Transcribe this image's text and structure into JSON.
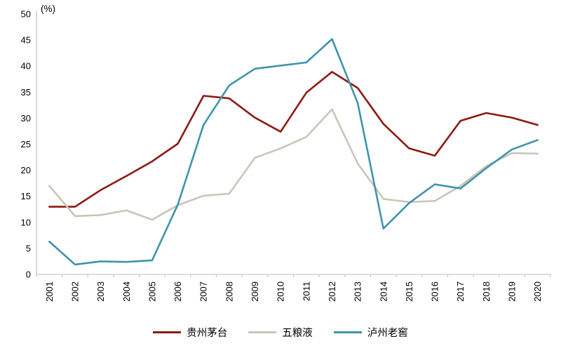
{
  "chart_data": {
    "type": "line",
    "unit_label": "(%)",
    "categories": [
      "2001",
      "2002",
      "2003",
      "2004",
      "2005",
      "2006",
      "2007",
      "2008",
      "2009",
      "2010",
      "2011",
      "2012",
      "2013",
      "2014",
      "2015",
      "2016",
      "2017",
      "2018",
      "2019",
      "2020"
    ],
    "yticks": [
      0,
      5,
      10,
      15,
      20,
      25,
      30,
      35,
      40,
      45,
      50
    ],
    "ylim": [
      0,
      50
    ],
    "grid": false,
    "legend_position": "bottom",
    "axis_color": "#c7c7c7",
    "text_color": "#000000",
    "series": [
      {
        "name": "贵州茅台",
        "color": "#8c1a11",
        "values": [
          13.0,
          13.0,
          16.2,
          18.9,
          21.7,
          25.1,
          34.3,
          33.8,
          30.1,
          27.4,
          34.9,
          38.9,
          35.8,
          28.9,
          24.2,
          22.8,
          29.5,
          31.0,
          30.1,
          28.7
        ]
      },
      {
        "name": "五粮液",
        "color": "#c9c6b8",
        "values": [
          17.0,
          11.2,
          11.4,
          12.3,
          10.5,
          13.3,
          15.1,
          15.5,
          22.4,
          24.2,
          26.4,
          31.7,
          21.3,
          14.5,
          13.9,
          14.1,
          17.0,
          20.8,
          23.3,
          23.2
        ]
      },
      {
        "name": "泸州老窖",
        "color": "#4093ab",
        "values": [
          6.3,
          1.9,
          2.5,
          2.4,
          2.7,
          13.4,
          28.7,
          36.3,
          39.5,
          40.1,
          40.7,
          45.2,
          32.9,
          8.8,
          13.7,
          17.3,
          16.5,
          20.4,
          24.0,
          25.8
        ]
      }
    ]
  }
}
